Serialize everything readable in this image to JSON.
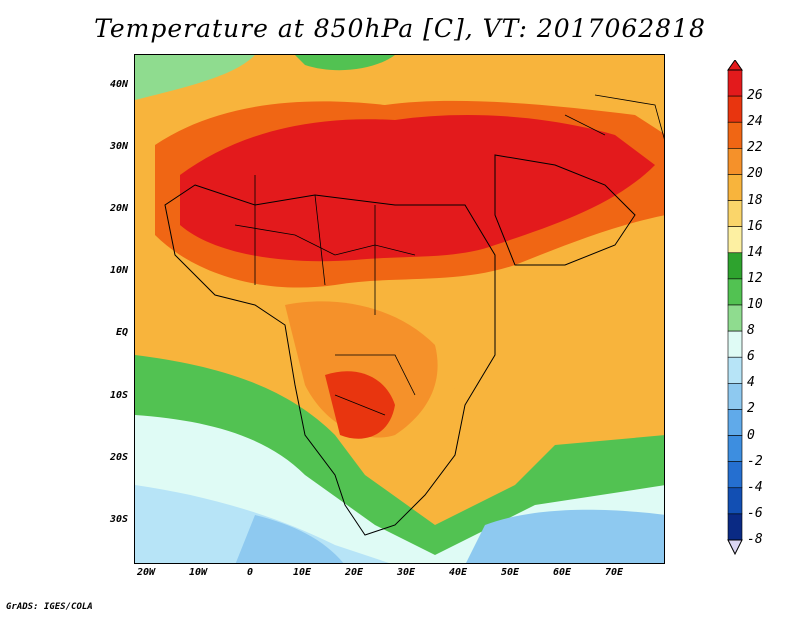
{
  "title": "Temperature at 850hPa [C], VT: 2017062818",
  "credit": "GrADS: IGES/COLA",
  "lat_labels": [
    "40N",
    "30N",
    "20N",
    "10N",
    "EQ",
    "10S",
    "20S",
    "30S"
  ],
  "lon_labels": [
    "20W",
    "10W",
    "0",
    "10E",
    "20E",
    "30E",
    "40E",
    "50E",
    "60E",
    "70E"
  ],
  "colorbar": {
    "labels": [
      "26",
      "24",
      "22",
      "20",
      "18",
      "16",
      "14",
      "12",
      "10",
      "8",
      "6",
      "4",
      "2",
      "0",
      "-2",
      "-4",
      "-6",
      "-8"
    ],
    "colors": [
      "#e31a1c",
      "#e8350f",
      "#f06614",
      "#f5912a",
      "#f8b43c",
      "#fad56a",
      "#fdf0a2",
      "#2ea32e",
      "#52c252",
      "#8fdc8f",
      "#dffbf5",
      "#b7e4f7",
      "#8ec9f0",
      "#60aaea",
      "#3d8ee0",
      "#256fd0",
      "#124fb3",
      "#0a2a84"
    ]
  }
}
